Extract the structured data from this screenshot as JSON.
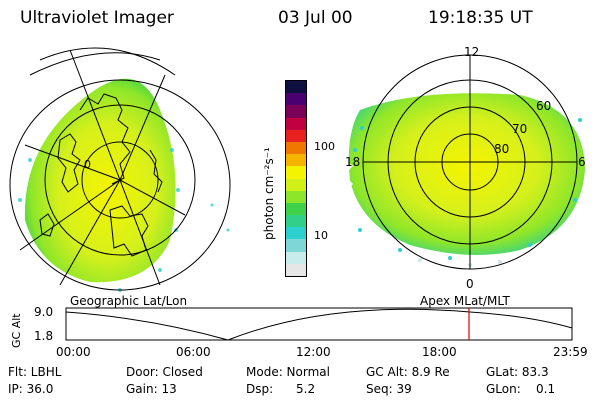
{
  "header": {
    "title": "Ultraviolet Imager",
    "date": "03 Jul 00",
    "time": "19:18:35 UT"
  },
  "colorbar": {
    "unit_label": "photon cm⁻²s⁻¹",
    "ticks": [
      "100",
      "10"
    ],
    "colors": [
      "#e6e6e6",
      "#c8ecec",
      "#7fd6d6",
      "#2ecfd0",
      "#30d08a",
      "#3ed24a",
      "#8ee62a",
      "#d0f018",
      "#f4f400",
      "#f4b400",
      "#f07800",
      "#e82020",
      "#c00040",
      "#7a0058",
      "#4a0070",
      "#101040"
    ]
  },
  "left_map": {
    "caption": "Geographic Lat/Lon",
    "lat_labels": [
      "0"
    ]
  },
  "right_map": {
    "caption": "Apex MLat/MLT",
    "mlt_labels": {
      "top": "12",
      "bottom": "0",
      "left": "18",
      "right": "6"
    },
    "lat_labels": [
      "60",
      "70",
      "80"
    ]
  },
  "altitude_plot": {
    "y_axis_label": "GC Alt",
    "y_ticks": [
      "9.0",
      "1.8"
    ],
    "x_ticks": [
      "00:00",
      "06:00",
      "12:00",
      "18:00",
      "23:59"
    ],
    "marker_color": "#e00000"
  },
  "status": {
    "flt": "Flt: LBHL",
    "door": "Door: Closed",
    "mode": "Mode: Normal",
    "gc_alt": "GC Alt: 8.9 Re",
    "glat": "GLat:  83.3",
    "ip": "IP: 36.0",
    "gain": "Gain: 13",
    "dsp": "Dsp:      5.2",
    "seq": "Seq: 39",
    "glon": "GLon:    0.1"
  }
}
